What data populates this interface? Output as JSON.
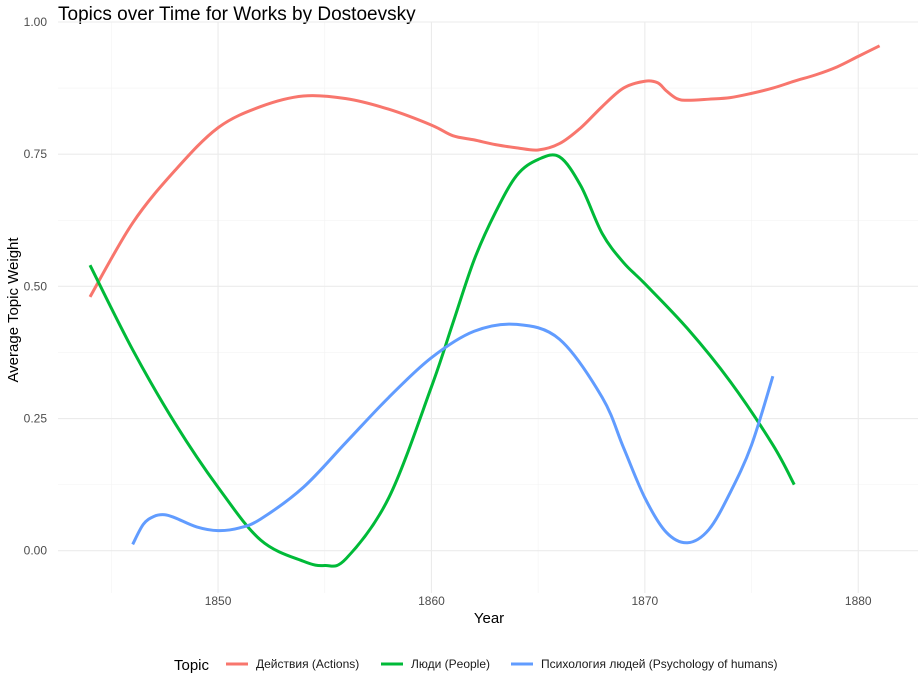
{
  "chart_data": {
    "type": "line",
    "title": "Topics over Time for Works by Dostoevsky",
    "xlabel": "Year",
    "ylabel": "Average Topic Weight",
    "xlim": [
      1842.5,
      1882.8
    ],
    "ylim": [
      -0.08,
      1.0
    ],
    "x_ticks": [
      1850,
      1860,
      1870,
      1880
    ],
    "y_ticks": [
      0.0,
      0.25,
      0.5,
      0.75,
      1.0
    ],
    "x_tick_labels": [
      "1850",
      "1860",
      "1870",
      "1880"
    ],
    "y_tick_labels": [
      "0.00",
      "0.25",
      "0.50",
      "0.75",
      "1.00"
    ],
    "grid": true,
    "legend": {
      "title": "Topic",
      "placement": "bottom"
    },
    "series": [
      {
        "name": "Действия (Actions)",
        "color": "#F8766D",
        "x": [
          1844,
          1846,
          1848,
          1850,
          1852,
          1854,
          1856,
          1858,
          1860,
          1861,
          1862,
          1863,
          1864,
          1865,
          1866,
          1867,
          1868,
          1869,
          1870,
          1870.6,
          1871,
          1871.5,
          1872,
          1873,
          1874,
          1875,
          1876,
          1877,
          1878,
          1879,
          1880,
          1881
        ],
        "y": [
          0.48,
          0.62,
          0.72,
          0.8,
          0.84,
          0.86,
          0.855,
          0.835,
          0.805,
          0.785,
          0.777,
          0.768,
          0.762,
          0.758,
          0.77,
          0.8,
          0.84,
          0.875,
          0.888,
          0.885,
          0.87,
          0.855,
          0.852,
          0.854,
          0.857,
          0.865,
          0.875,
          0.888,
          0.9,
          0.915,
          0.935,
          0.955
        ]
      },
      {
        "name": "Люди (People)",
        "color": "#00BA38",
        "x": [
          1844,
          1846,
          1848,
          1850,
          1852,
          1854,
          1855,
          1856,
          1858,
          1860,
          1861,
          1862,
          1863,
          1864,
          1865,
          1866,
          1867,
          1868,
          1869,
          1870,
          1872,
          1874,
          1876,
          1877
        ],
        "y": [
          0.54,
          0.38,
          0.24,
          0.12,
          0.02,
          -0.02,
          -0.028,
          -0.015,
          0.1,
          0.31,
          0.43,
          0.55,
          0.64,
          0.71,
          0.74,
          0.745,
          0.69,
          0.6,
          0.545,
          0.505,
          0.42,
          0.32,
          0.2,
          0.125
        ]
      },
      {
        "name": "Психология людей (Psychology of humans)",
        "color": "#619CFF",
        "x": [
          1846,
          1846.5,
          1847,
          1847.5,
          1848,
          1849,
          1850,
          1851,
          1852,
          1854,
          1856,
          1858,
          1860,
          1862,
          1864,
          1866,
          1868,
          1869,
          1870,
          1871,
          1872,
          1873,
          1874,
          1875,
          1876
        ],
        "y": [
          0.012,
          0.05,
          0.065,
          0.068,
          0.062,
          0.045,
          0.038,
          0.043,
          0.06,
          0.12,
          0.205,
          0.29,
          0.365,
          0.415,
          0.428,
          0.4,
          0.29,
          0.195,
          0.1,
          0.035,
          0.015,
          0.04,
          0.11,
          0.2,
          0.33
        ]
      }
    ]
  }
}
